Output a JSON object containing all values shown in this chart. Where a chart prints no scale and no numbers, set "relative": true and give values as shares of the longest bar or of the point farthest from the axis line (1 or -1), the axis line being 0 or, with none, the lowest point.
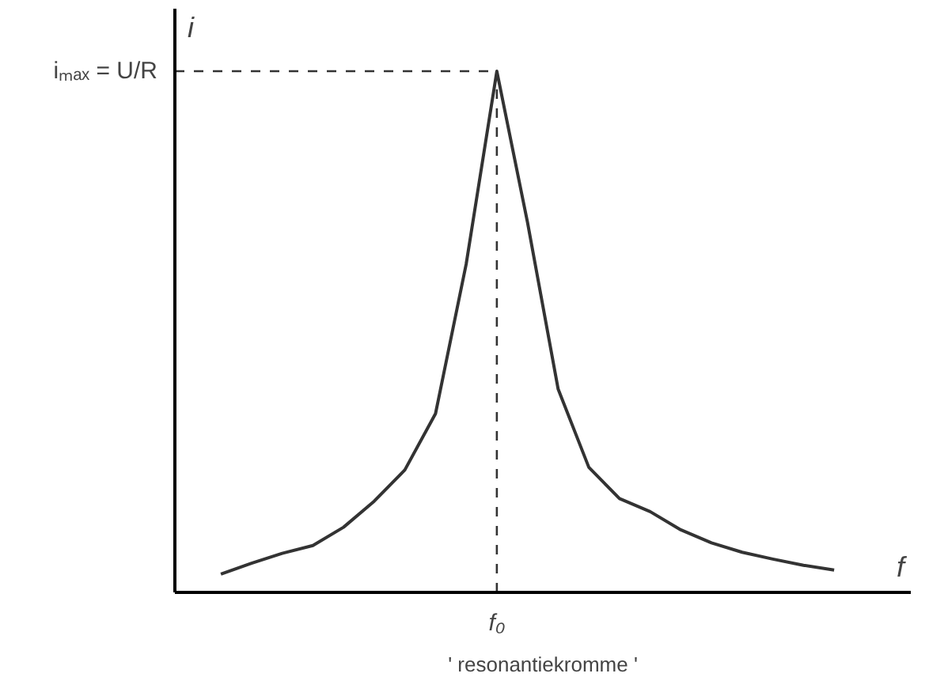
{
  "chart_data": {
    "type": "line",
    "relative": true,
    "xlabel": "f",
    "ylabel": "i",
    "color": "#333333",
    "categories": [
      null,
      null,
      null,
      null,
      null,
      null,
      null,
      null,
      null,
      null,
      null,
      null,
      null,
      null,
      null,
      null,
      null,
      null,
      null,
      null,
      null
    ],
    "values": [
      0.035,
      0.056,
      0.075,
      0.09,
      0.125,
      0.175,
      0.235,
      0.343,
      0.63,
      1,
      0.71,
      0.39,
      0.24,
      0.18,
      0.155,
      0.12,
      0.095,
      0.077,
      0.064,
      0.052,
      0.043
    ],
    "ref_lines": [
      {
        "axis": "y",
        "value": 1,
        "label": "iₘₐₓ = U/R",
        "line_style": "dashed"
      },
      {
        "axis": "x",
        "label": "f₀",
        "line_style": "dashed"
      }
    ],
    "annotations": [
      "' resonantiekromme '"
    ],
    "grid": false,
    "marker": "none",
    "line_style": "solid"
  }
}
